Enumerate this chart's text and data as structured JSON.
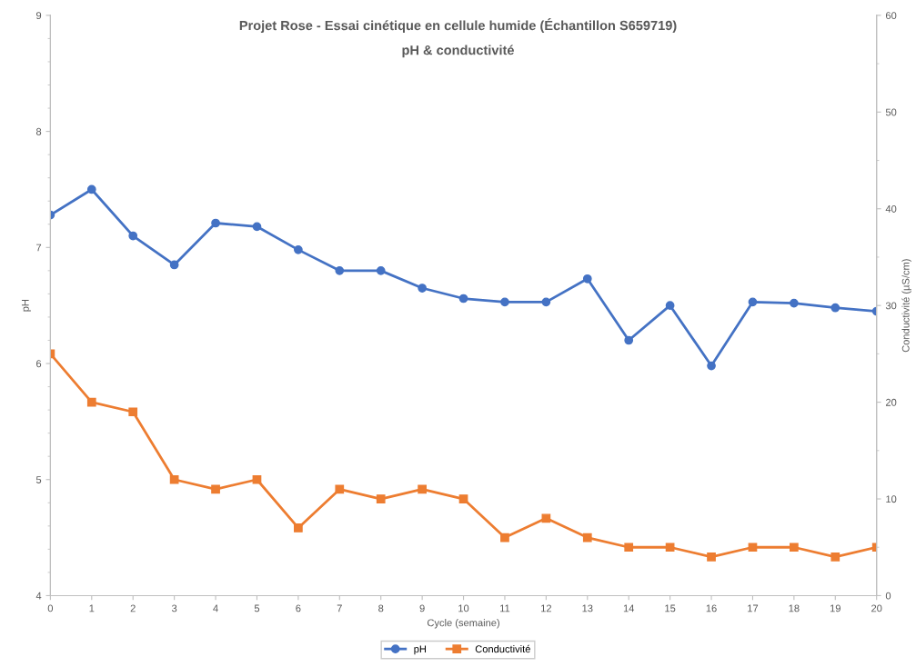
{
  "chart_data": {
    "type": "line",
    "title": "Projet Rose - Essai cinétique en cellule humide (Échantillon S659719)",
    "subtitle": "pH & conductivité",
    "xlabel": "Cycle (semaine)",
    "ylabel": "pH",
    "y2label": "Conductivité (µS/cm)",
    "x": [
      0,
      1,
      2,
      3,
      4,
      5,
      6,
      7,
      8,
      9,
      10,
      11,
      12,
      13,
      14,
      15,
      16,
      17,
      18,
      19,
      20
    ],
    "xlim": [
      0,
      20
    ],
    "xticks": [
      0,
      1,
      2,
      3,
      4,
      5,
      6,
      7,
      8,
      9,
      10,
      11,
      12,
      13,
      14,
      15,
      16,
      17,
      18,
      19,
      20
    ],
    "ylim": [
      4,
      9
    ],
    "yticks": [
      4,
      5,
      6,
      7,
      8,
      9
    ],
    "y2lim": [
      0,
      60
    ],
    "y2ticks": [
      0,
      10,
      20,
      30,
      40,
      50,
      60
    ],
    "grid": false,
    "legend": "bottom",
    "series": [
      {
        "name": "pH",
        "color": "#4472c4",
        "marker": "circle",
        "values": [
          7.28,
          7.5,
          7.1,
          6.85,
          7.21,
          7.18,
          6.98,
          6.8,
          6.8,
          6.65,
          6.56,
          6.53,
          6.53,
          6.73,
          6.2,
          6.5,
          5.98,
          6.53,
          6.52,
          6.48,
          6.45
        ]
      },
      {
        "name": "Conductivité",
        "color": "#ed7d31",
        "marker": "square",
        "axis": "y2",
        "values": [
          25,
          20,
          19,
          12,
          11,
          12,
          7,
          11,
          10,
          11,
          10,
          6,
          8,
          6,
          5,
          5,
          4,
          5,
          5,
          4,
          5
        ]
      }
    ]
  }
}
